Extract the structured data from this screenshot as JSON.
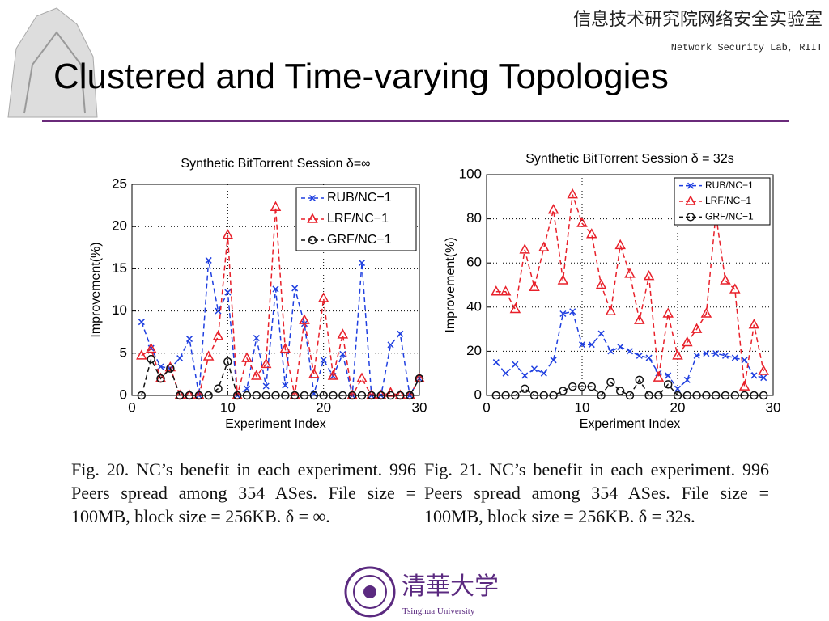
{
  "header": {
    "lab_cn": "信息技术研究院网络安全实验室",
    "lab_en": "Network Security Lab, RIIT"
  },
  "title": "Clustered and Time-varying Topologies",
  "captions": [
    "Fig. 20. NC’s benefit in each experiment. 996 Peers spread among 354 ASes. File size = 100MB, block size = 256KB. δ = ∞.",
    "Fig. 21. NC’s benefit in each experiment. 996 Peers spread among 354 ASes. File size = 100MB, block size = 256KB. δ = 32s."
  ],
  "logo": {
    "name_cn": "清華大学",
    "name_en": "Tsinghua University"
  },
  "chart_data": [
    {
      "type": "line",
      "title": "Synthetic BitTorrent Session δ=∞",
      "x_label": "Experiment Index",
      "y_label": "Improvement(%)",
      "xlim": [
        0,
        30
      ],
      "xticks": [
        0,
        10,
        20,
        30
      ],
      "ylim": [
        0,
        25
      ],
      "yticks": [
        0,
        5,
        10,
        15,
        20,
        25
      ],
      "grid": true,
      "legend": "upper right",
      "x": [
        1,
        2,
        3,
        4,
        5,
        6,
        7,
        8,
        9,
        10,
        11,
        12,
        13,
        14,
        15,
        16,
        17,
        18,
        19,
        20,
        21,
        22,
        23,
        24,
        25,
        26,
        27,
        28,
        29,
        30
      ],
      "series": [
        {
          "name": "RUB/NC−1",
          "color": "#1f3fe0",
          "marker": "x",
          "values": [
            8.7,
            5.6,
            3.4,
            3.2,
            4.4,
            6.7,
            0,
            16,
            10,
            12.2,
            0,
            0.8,
            6.8,
            1.1,
            12.6,
            1.2,
            12.7,
            8.5,
            0.2,
            4.2,
            2.3,
            4.9,
            0,
            15.7,
            0,
            0,
            6,
            7.3,
            0,
            2
          ]
        },
        {
          "name": "LRF/NC−1",
          "color": "#e8202a",
          "marker": "triangle",
          "values": [
            4.7,
            5.5,
            2,
            3.3,
            0,
            0,
            0,
            4.6,
            7,
            19,
            0,
            4.4,
            2.3,
            3.7,
            22.3,
            5.5,
            0,
            8.9,
            2.5,
            11.5,
            2.3,
            7.2,
            0,
            2,
            0,
            0,
            0.3,
            0,
            0,
            2
          ]
        },
        {
          "name": "GRF/NC−1",
          "color": "#111111",
          "marker": "circle",
          "values": [
            0,
            4.3,
            2,
            3.2,
            0,
            0,
            0,
            0,
            0.8,
            4,
            0,
            0,
            0,
            0,
            0,
            0,
            0,
            0,
            0,
            0,
            0,
            0,
            0,
            0,
            0,
            0,
            0,
            0,
            0,
            2
          ]
        }
      ]
    },
    {
      "type": "line",
      "title": "Synthetic BitTorrent Session δ = 32s",
      "x_label": "Experiment Index",
      "y_label": "Improvement(%)",
      "xlim": [
        0,
        30
      ],
      "xticks": [
        0,
        10,
        20,
        30
      ],
      "ylim": [
        0,
        100
      ],
      "yticks": [
        0,
        20,
        40,
        60,
        80,
        100
      ],
      "grid": true,
      "legend": "upper right",
      "x": [
        1,
        2,
        3,
        4,
        5,
        6,
        7,
        8,
        9,
        10,
        11,
        12,
        13,
        14,
        15,
        16,
        17,
        18,
        19,
        20,
        21,
        22,
        23,
        24,
        25,
        26,
        27,
        28,
        29
      ],
      "series": [
        {
          "name": "RUB/NC−1",
          "color": "#1f3fe0",
          "marker": "x",
          "values": [
            15,
            10,
            14,
            9,
            12,
            10,
            16,
            37,
            38,
            23,
            23,
            28,
            20,
            22,
            20,
            18,
            17,
            10,
            9,
            3,
            7,
            18,
            19,
            19,
            18,
            17,
            16,
            9,
            8
          ]
        },
        {
          "name": "LRF/NC−1",
          "color": "#e8202a",
          "marker": "triangle",
          "values": [
            47,
            47,
            39,
            66,
            49,
            67,
            84,
            52,
            91,
            78,
            73,
            50,
            38,
            68,
            55,
            34,
            54,
            8,
            37,
            18,
            24,
            30,
            37,
            82,
            52,
            48,
            4,
            32,
            11
          ]
        },
        {
          "name": "GRF/NC−1",
          "color": "#111111",
          "marker": "circle",
          "values": [
            0,
            0,
            0,
            3,
            0,
            0,
            0,
            2,
            4,
            4,
            4,
            0,
            6,
            2,
            0,
            7,
            0,
            0,
            5,
            0,
            0,
            0,
            0,
            0,
            0,
            0,
            0,
            0,
            0
          ]
        }
      ]
    }
  ]
}
